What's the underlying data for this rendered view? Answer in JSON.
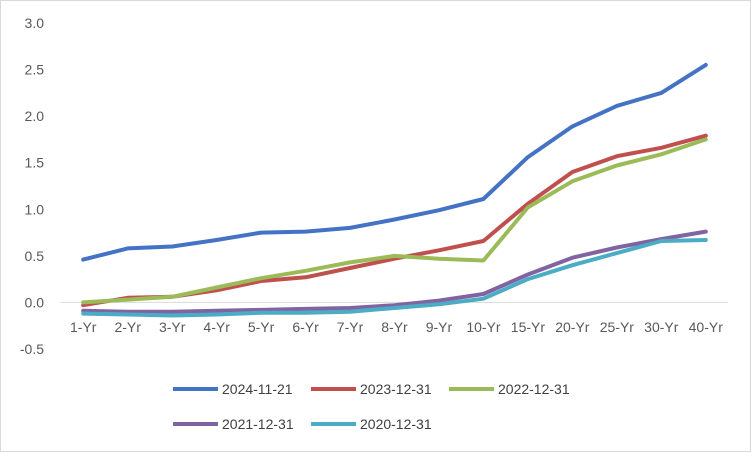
{
  "chart_data": {
    "type": "line",
    "title": "",
    "xlabel": "",
    "ylabel": "",
    "ylim": [
      -0.5,
      3.0
    ],
    "yticks": [
      3.0,
      2.5,
      2.0,
      1.5,
      1.0,
      0.5,
      0.0,
      -0.5
    ],
    "ytick_labels": [
      "3.0",
      "2.5",
      "2.0",
      "1.5",
      "1.0",
      "0.5",
      "0.0",
      "-0.5"
    ],
    "grid": false,
    "legend_position": "bottom",
    "categories": [
      "1-Yr",
      "2-Yr",
      "3-Yr",
      "4-Yr",
      "5-Yr",
      "6-Yr",
      "7-Yr",
      "8-Yr",
      "9-Yr",
      "10-Yr",
      "15-Yr",
      "20-Yr",
      "25-Yr",
      "30-Yr",
      "40-Yr"
    ],
    "series": [
      {
        "name": "2024-11-21",
        "color": "#4472C4",
        "values": [
          0.46,
          0.58,
          0.6,
          0.67,
          0.75,
          0.76,
          0.8,
          0.89,
          0.99,
          1.11,
          1.56,
          1.89,
          2.11,
          2.25,
          2.55
        ]
      },
      {
        "name": "2023-12-31",
        "color": "#C0504D",
        "values": [
          -0.03,
          0.05,
          0.06,
          0.13,
          0.23,
          0.27,
          0.37,
          0.47,
          0.56,
          0.66,
          1.06,
          1.4,
          1.57,
          1.66,
          1.79
        ]
      },
      {
        "name": "2022-12-31",
        "color": "#9BBB59",
        "values": [
          0.0,
          0.03,
          0.06,
          0.16,
          0.26,
          0.34,
          0.43,
          0.5,
          0.47,
          0.45,
          1.02,
          1.3,
          1.47,
          1.59,
          1.75
        ]
      },
      {
        "name": "2021-12-31",
        "color": "#8064A2",
        "values": [
          -0.09,
          -0.1,
          -0.1,
          -0.09,
          -0.08,
          -0.07,
          -0.06,
          -0.03,
          0.02,
          0.09,
          0.3,
          0.48,
          0.59,
          0.68,
          0.76
        ]
      },
      {
        "name": "2020-12-31",
        "color": "#4BACC6",
        "values": [
          -0.12,
          -0.13,
          -0.14,
          -0.13,
          -0.11,
          -0.11,
          -0.1,
          -0.06,
          -0.02,
          0.04,
          0.25,
          0.4,
          0.53,
          0.66,
          0.67
        ]
      }
    ]
  }
}
